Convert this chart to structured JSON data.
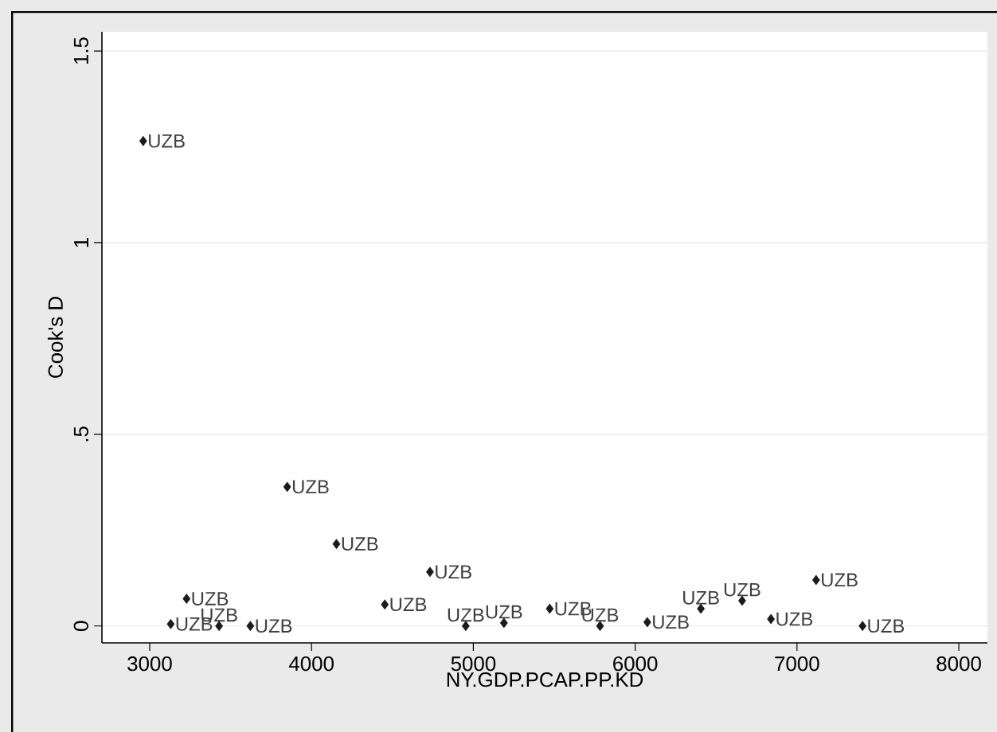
{
  "chart_data": {
    "type": "scatter",
    "xlabel": "NY.GDP.PCAP.PP.KD",
    "ylabel": "Cook's D",
    "x": [
      2960,
      3130,
      3228,
      3429,
      3622,
      3850,
      4154,
      4453,
      4732,
      4953,
      5189,
      5472,
      5783,
      6075,
      6406,
      6661,
      6839,
      7118,
      7405
    ],
    "values": [
      1.265,
      0.005,
      0.071,
      0.0,
      0.0,
      0.363,
      0.214,
      0.056,
      0.141,
      0.0,
      0.008,
      0.045,
      0.0,
      0.01,
      0.045,
      0.066,
      0.018,
      0.12,
      0.0
    ],
    "value_labels": [
      "UZB",
      "UZB",
      "UZB",
      "UZB",
      "UZB",
      "UZB",
      "UZB",
      "UZB",
      "UZB",
      "UZB",
      "UZB",
      "UZB",
      "UZB",
      "UZB",
      "UZB",
      "UZB",
      "UZB",
      "UZB",
      "UZB"
    ],
    "color": "#1a1a1a",
    "marker": "diamond",
    "xlim": [
      2705,
      8177
    ],
    "ylim": [
      -0.044,
      1.55
    ],
    "xticks": [
      3000,
      4000,
      5000,
      6000,
      7000,
      8000
    ],
    "yticks": [
      0,
      {
        "value": 0.5,
        "label": ".5"
      },
      1,
      {
        "value": 1.5,
        "label": "1.5"
      }
    ],
    "grid": "y"
  }
}
